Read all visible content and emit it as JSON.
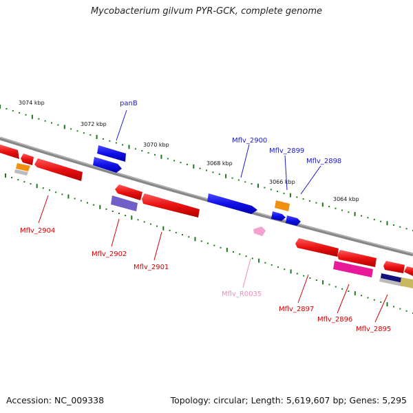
{
  "title": "Mycobacterium gilvum PYR-GCK, complete genome",
  "footer": {
    "accession": "Accession: NC_009338",
    "summary": "Topology: circular; Length: 5,619,607 bp; Genes: 5,295"
  },
  "scale_labels": [
    "3074 kbp",
    "3072 kbp",
    "3070 kbp",
    "3068 kbp",
    "3066 kbp",
    "3064 kbp"
  ],
  "gene_labels": {
    "forward": [
      "panB",
      "Mflv_2900",
      "Mflv_2899",
      "Mflv_2898"
    ],
    "reverse": [
      "Mflv_2904",
      "Mflv_2902",
      "Mflv_2901",
      "Mflv_2897",
      "Mflv_2896",
      "Mflv_2895"
    ],
    "rna": [
      "Mflv_R0035"
    ]
  },
  "colors": {
    "forward_cds": "#1010e8",
    "reverse_cds": "#e81010",
    "rna": "#f4a0d0",
    "orange_feature": "#f09010",
    "purple_feature": "#7060c8",
    "magenta_feature": "#e81a9a",
    "backbone": "#888888",
    "scale_ticks": "#1a7a1a"
  }
}
